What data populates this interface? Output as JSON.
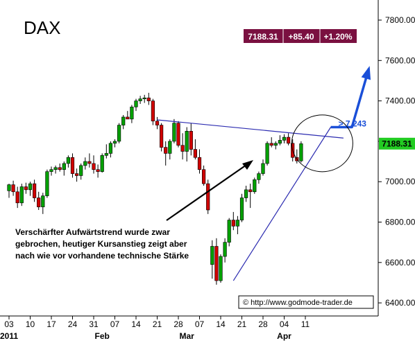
{
  "chart_data": {
    "type": "candlestick",
    "title": "DAX",
    "quote": {
      "last": "7188.31",
      "change": "+85.40",
      "change_pct": "+1.20%"
    },
    "current_price_label": "7188.31",
    "ylim": [
      6400,
      7900
    ],
    "y_ticks": [
      {
        "value": 6400,
        "label": "6400.00"
      },
      {
        "value": 6600,
        "label": "6600.00"
      },
      {
        "value": 6800,
        "label": "6800.00"
      },
      {
        "value": 7000,
        "label": "7000.00"
      },
      {
        "value": 7200,
        "label": "7200.00"
      },
      {
        "value": 7400,
        "label": "7400.00"
      },
      {
        "value": 7600,
        "label": "7600.00"
      },
      {
        "value": 7800,
        "label": "7800.00"
      }
    ],
    "x_ticks": [
      {
        "index": 0,
        "label": "03"
      },
      {
        "index": 5,
        "label": "10"
      },
      {
        "index": 10,
        "label": "17"
      },
      {
        "index": 15,
        "label": "24"
      },
      {
        "index": 20,
        "label": "31"
      },
      {
        "index": 25,
        "label": "07"
      },
      {
        "index": 30,
        "label": "14"
      },
      {
        "index": 35,
        "label": "21"
      },
      {
        "index": 40,
        "label": "28"
      },
      {
        "index": 45,
        "label": "07"
      },
      {
        "index": 50,
        "label": "14"
      },
      {
        "index": 55,
        "label": "21"
      },
      {
        "index": 60,
        "label": "28"
      },
      {
        "index": 65,
        "label": "04"
      },
      {
        "index": 70,
        "label": "11"
      }
    ],
    "month_labels": [
      {
        "index": 0,
        "label": "2011"
      },
      {
        "index": 22,
        "label": "Feb"
      },
      {
        "index": 42,
        "label": "Mar"
      },
      {
        "index": 65,
        "label": "Apr"
      }
    ],
    "candles": [
      [
        6955,
        6990,
        6920,
        6985
      ],
      [
        6985,
        7005,
        6930,
        6950
      ],
      [
        6950,
        6975,
        6870,
        6895
      ],
      [
        6895,
        6990,
        6880,
        6975
      ],
      [
        6975,
        6995,
        6940,
        6960
      ],
      [
        6960,
        7000,
        6930,
        6990
      ],
      [
        6990,
        7010,
        6900,
        6920
      ],
      [
        6920,
        6950,
        6860,
        6875
      ],
      [
        6875,
        6945,
        6840,
        6930
      ],
      [
        6930,
        7060,
        6920,
        7050
      ],
      [
        7050,
        7075,
        7030,
        7060
      ],
      [
        7060,
        7080,
        7040,
        7070
      ],
      [
        7070,
        7090,
        7050,
        7060
      ],
      [
        7060,
        7100,
        7030,
        7090
      ],
      [
        7090,
        7130,
        7070,
        7120
      ],
      [
        7120,
        7140,
        7020,
        7040
      ],
      [
        7040,
        7065,
        7000,
        7030
      ],
      [
        7030,
        7090,
        7010,
        7080
      ],
      [
        7080,
        7120,
        7060,
        7100
      ],
      [
        7100,
        7140,
        7070,
        7090
      ],
      [
        7090,
        7130,
        7040,
        7060
      ],
      [
        7060,
        7085,
        7020,
        7050
      ],
      [
        7050,
        7140,
        7045,
        7130
      ],
      [
        7130,
        7185,
        7115,
        7140
      ],
      [
        7140,
        7200,
        7120,
        7190
      ],
      [
        7190,
        7210,
        7170,
        7200
      ],
      [
        7200,
        7290,
        7190,
        7280
      ],
      [
        7280,
        7330,
        7260,
        7320
      ],
      [
        7320,
        7350,
        7310,
        7310
      ],
      [
        7310,
        7380,
        7290,
        7370
      ],
      [
        7370,
        7410,
        7350,
        7400
      ],
      [
        7400,
        7425,
        7385,
        7410
      ],
      [
        7410,
        7430,
        7390,
        7415
      ],
      [
        7415,
        7440,
        7380,
        7400
      ],
      [
        7400,
        7410,
        7280,
        7300
      ],
      [
        7300,
        7320,
        7260,
        7280
      ],
      [
        7280,
        7290,
        7150,
        7170
      ],
      [
        7170,
        7200,
        7080,
        7140
      ],
      [
        7140,
        7210,
        7110,
        7200
      ],
      [
        7200,
        7310,
        7190,
        7290
      ],
      [
        7290,
        7300,
        7170,
        7180
      ],
      [
        7180,
        7240,
        7110,
        7150
      ],
      [
        7150,
        7270,
        7100,
        7250
      ],
      [
        7250,
        7290,
        7130,
        7160
      ],
      [
        7160,
        7210,
        7110,
        7120
      ],
      [
        7120,
        7160,
        7040,
        7060
      ],
      [
        7060,
        7080,
        6980,
        6990
      ],
      [
        6990,
        7010,
        6840,
        6860
      ],
      [
        6590,
        6710,
        6520,
        6680
      ],
      [
        6680,
        6720,
        6490,
        6510
      ],
      [
        6510,
        6640,
        6500,
        6630
      ],
      [
        6630,
        6720,
        6600,
        6700
      ],
      [
        6700,
        6820,
        6680,
        6810
      ],
      [
        6810,
        6850,
        6760,
        6780
      ],
      [
        6780,
        6830,
        6740,
        6810
      ],
      [
        6810,
        6940,
        6800,
        6920
      ],
      [
        6920,
        6980,
        6900,
        6960
      ],
      [
        6960,
        6990,
        6870,
        6950
      ],
      [
        6950,
        7020,
        6940,
        7010
      ],
      [
        7010,
        7050,
        6990,
        7040
      ],
      [
        7040,
        7110,
        7030,
        7090
      ],
      [
        7090,
        7200,
        7080,
        7190
      ],
      [
        7190,
        7220,
        7170,
        7180
      ],
      [
        7180,
        7200,
        7160,
        7190
      ],
      [
        7190,
        7230,
        7180,
        7205
      ],
      [
        7205,
        7235,
        7190,
        7220
      ],
      [
        7220,
        7240,
        7180,
        7190
      ],
      [
        7190,
        7210,
        7100,
        7120
      ],
      [
        7120,
        7160,
        7090,
        7103
      ],
      [
        7103,
        7200,
        7095,
        7188
      ]
    ],
    "trendlines": [
      {
        "from": [
          35,
          7306
        ],
        "to": [
          79,
          7216
        ],
        "color": "#2b2bb0"
      },
      {
        "from": [
          53,
          6510
        ],
        "to": [
          76,
          7270
        ],
        "color": "#2b2bb0"
      }
    ],
    "target_arrow": {
      "points": [
        [
          76,
          7270
        ],
        [
          81,
          7270
        ],
        [
          85,
          7560
        ]
      ],
      "label": "> 7.243",
      "color": "#1a4fd8"
    },
    "circle": {
      "center": [
        74,
        7190
      ],
      "rx": 44,
      "ry": 41
    },
    "annotation": {
      "lines": [
        "Verschärfter Aufwärtstrend wurde zwar",
        "gebrochen, heutiger Kursanstieg zeigt aber",
        "nach wie vor vorhandene technische Stärke"
      ]
    },
    "copyright": "© http://www.godmode-trader.de",
    "colors": {
      "up": "#00a000",
      "down": "#d00000",
      "quote_bg": "#7a1040",
      "current_bg": "#22cc22",
      "trend": "#2b2bb0",
      "target": "#1a4fd8"
    }
  }
}
